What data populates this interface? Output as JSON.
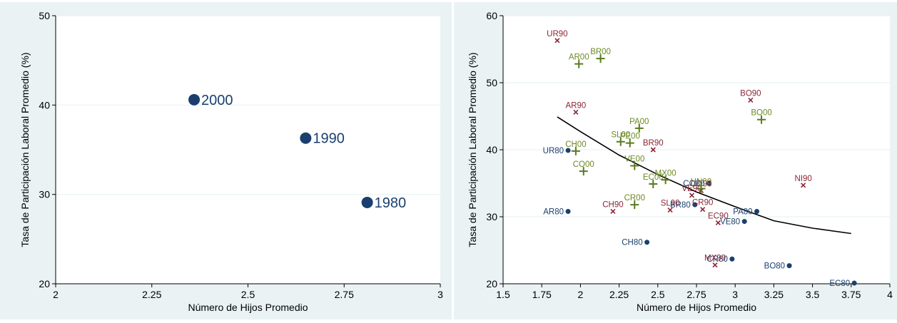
{
  "chart_data": [
    {
      "type": "scatter",
      "xlabel": "Número de Hijos Promedio",
      "ylabel": "Tasa de Participación Laboral Promedio (%)",
      "xlim": [
        2,
        3
      ],
      "ylim": [
        20,
        50
      ],
      "xticks": [
        "2",
        "2.25",
        "2.5",
        "2.75",
        "3"
      ],
      "xtick_values": [
        2,
        2.25,
        2.5,
        2.75,
        3
      ],
      "yticks": [
        "20",
        "30",
        "40",
        "50"
      ],
      "ytick_values": [
        20,
        30,
        40,
        50
      ],
      "grid": true,
      "marker_color": "#1a3f6f",
      "points": [
        {
          "label": "2000",
          "x": 2.36,
          "y": 40.6
        },
        {
          "label": "1990",
          "x": 2.65,
          "y": 36.3
        },
        {
          "label": "1980",
          "x": 2.81,
          "y": 29.1
        }
      ]
    },
    {
      "type": "scatter",
      "xlabel": "Número de Hijos Promedio",
      "ylabel": "Tasa de Participación Laboral Promedio (%)",
      "xlim": [
        1.5,
        4
      ],
      "ylim": [
        20,
        60
      ],
      "xticks": [
        "1.5",
        "1.75",
        "2",
        "2.25",
        "2.5",
        "2.75",
        "3",
        "3.25",
        "3.5",
        "3.75",
        "4"
      ],
      "xtick_values": [
        1.5,
        1.75,
        2,
        2.25,
        2.5,
        2.75,
        3,
        3.25,
        3.5,
        3.75,
        4
      ],
      "yticks": [
        "20",
        "30",
        "40",
        "50",
        "60"
      ],
      "ytick_values": [
        20,
        30,
        40,
        50,
        60
      ],
      "grid": true,
      "series": [
        {
          "marker": "dot",
          "color": "#1a3f6f",
          "label_color": "#1a3f6f",
          "points": [
            {
              "label": "UR80",
              "x": 1.92,
              "y": 39.9
            },
            {
              "label": "AR80",
              "x": 1.92,
              "y": 30.8
            },
            {
              "label": "CH80",
              "x": 2.43,
              "y": 26.2
            },
            {
              "label": "BR80",
              "x": 2.74,
              "y": 31.8
            },
            {
              "label": "CO80",
              "x": 2.83,
              "y": 35.0
            },
            {
              "label": "VE80",
              "x": 3.06,
              "y": 29.3
            },
            {
              "label": "PA80",
              "x": 3.14,
              "y": 30.8
            },
            {
              "label": "CR80",
              "x": 2.98,
              "y": 23.7
            },
            {
              "label": "BO80",
              "x": 3.35,
              "y": 22.7
            },
            {
              "label": "EC80",
              "x": 3.77,
              "y": 20.1
            }
          ]
        },
        {
          "marker": "x",
          "color": "#8b2635",
          "label_color": "#8b2635",
          "points": [
            {
              "label": "UR90",
              "x": 1.85,
              "y": 56.3
            },
            {
              "label": "AR90",
              "x": 1.97,
              "y": 45.6
            },
            {
              "label": "BO90",
              "x": 3.1,
              "y": 47.4
            },
            {
              "label": "BR90",
              "x": 2.47,
              "y": 40.0
            },
            {
              "label": "NI90",
              "x": 3.44,
              "y": 34.7
            },
            {
              "label": "CH90",
              "x": 2.21,
              "y": 30.8
            },
            {
              "label": "SL90",
              "x": 2.58,
              "y": 31.0
            },
            {
              "label": "VE90",
              "x": 2.72,
              "y": 33.2
            },
            {
              "label": "CO90",
              "x": 2.78,
              "y": 33.9
            },
            {
              "label": "CR90",
              "x": 2.79,
              "y": 31.1
            },
            {
              "label": "EC90",
              "x": 2.89,
              "y": 29.1
            },
            {
              "label": "MX90",
              "x": 2.87,
              "y": 22.8
            }
          ]
        },
        {
          "marker": "plus",
          "color": "#5a7a1f",
          "label_color": "#6b8a23",
          "points": [
            {
              "label": "AR00",
              "x": 1.99,
              "y": 52.8
            },
            {
              "label": "BR00",
              "x": 2.13,
              "y": 53.6
            },
            {
              "label": "PA00",
              "x": 2.38,
              "y": 43.2
            },
            {
              "label": "BO00",
              "x": 3.17,
              "y": 44.5
            },
            {
              "label": "SL00",
              "x": 2.26,
              "y": 41.2
            },
            {
              "label": "PE00",
              "x": 2.32,
              "y": 41.0
            },
            {
              "label": "CH00",
              "x": 1.97,
              "y": 39.8
            },
            {
              "label": "CO00",
              "x": 2.02,
              "y": 36.8
            },
            {
              "label": "VE00",
              "x": 2.35,
              "y": 37.6
            },
            {
              "label": "EC00",
              "x": 2.47,
              "y": 34.9
            },
            {
              "label": "MX00",
              "x": 2.55,
              "y": 35.5
            },
            {
              "label": "CR00",
              "x": 2.35,
              "y": 31.8
            },
            {
              "label": "HN00",
              "x": 2.78,
              "y": 34.2
            }
          ]
        }
      ],
      "fit_line": {
        "type": "curve",
        "color": "#000000",
        "points": [
          [
            1.85,
            44.9
          ],
          [
            2.0,
            42.7
          ],
          [
            2.25,
            39.2
          ],
          [
            2.5,
            36.3
          ],
          [
            2.75,
            33.7
          ],
          [
            3.0,
            31.5
          ],
          [
            3.25,
            29.4
          ],
          [
            3.5,
            28.3
          ],
          [
            3.75,
            27.5
          ]
        ]
      }
    }
  ],
  "colors": {
    "outer_background": "#eaf2f3",
    "plot_background": "#ffffff",
    "grid": "#eaf2f3",
    "axis": "#000000",
    "text": "#000000"
  }
}
